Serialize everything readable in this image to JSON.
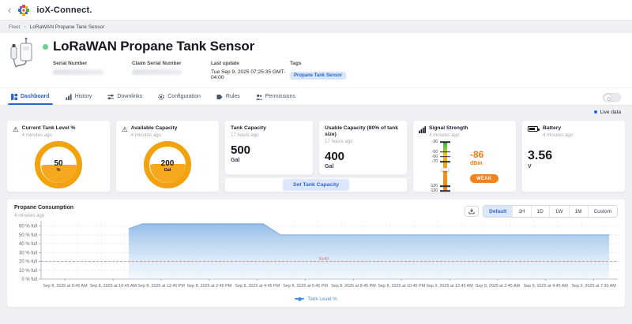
{
  "topbar": {
    "back": "‹",
    "brand": "ioX-Connect."
  },
  "breadcrumb": {
    "items": [
      "Fleet",
      "LoRaWAN Propane Tank Sensor"
    ],
    "separator": "›"
  },
  "header": {
    "status": "online",
    "title": "LoRaWAN Propane Tank Sensor",
    "fields": [
      {
        "label": "Serial Number",
        "redacted": true
      },
      {
        "label": "Claim Serial Number",
        "redacted": true
      },
      {
        "label": "Last update",
        "value": "Tue Sep 9, 2025 07:25:35 GMT-04:00"
      },
      {
        "label": "Tags",
        "badge": "Propane Tank Sensor"
      }
    ]
  },
  "tabs": [
    {
      "label": "Dashboard",
      "icon": "dashboard-icon",
      "active": true
    },
    {
      "label": "History",
      "icon": "history-icon",
      "active": false
    },
    {
      "label": "Downlinks",
      "icon": "downlinks-icon",
      "active": false
    },
    {
      "label": "Configuration",
      "icon": "configuration-icon",
      "active": false
    },
    {
      "label": "Rules",
      "icon": "rules-icon",
      "active": false
    },
    {
      "label": "Permissions",
      "icon": "permissions-icon",
      "active": false
    }
  ],
  "live_data": {
    "label": "Live data"
  },
  "cards": {
    "tank_level": {
      "title": "Current Tank Level %",
      "updated": "4 minutes ago",
      "value": "50",
      "unit": "%",
      "fill_pct": 50,
      "warning_icon": "⚠"
    },
    "available_capacity": {
      "title": "Available Capacity",
      "updated": "4 minutes ago",
      "value": "200",
      "unit": "Gal",
      "fill_pct": 52,
      "warning_icon": "⚠"
    },
    "tank_capacity": {
      "title": "Tank Capacity",
      "updated": "17 hours ago",
      "value": "500",
      "unit": "Gal"
    },
    "usable_capacity": {
      "title": "Usable Capacity (80% of tank size)",
      "updated": "17 hours ago",
      "value": "400",
      "unit": "Gal"
    },
    "set_capacity_button": "Set Tank Capacity",
    "signal": {
      "title": "Signal Strength",
      "updated": "4 minutes ago",
      "value": "-86",
      "unit": "dBm",
      "status": "WEAK",
      "marker_pos": 56,
      "ticks": [
        {
          "label": "-30",
          "pos": 0
        },
        {
          "label": "-50",
          "pos": 20
        },
        {
          "label": "-60",
          "pos": 30
        },
        {
          "label": "-70",
          "pos": 40
        },
        {
          "label": "-120",
          "pos": 90
        },
        {
          "label": "-130",
          "pos": 100
        }
      ]
    },
    "battery": {
      "title": "Battery",
      "updated": "4 minutes ago",
      "value": "3.56",
      "unit": "V"
    }
  },
  "chart": {
    "title": "Propane Consumption",
    "updated": "4 minutes ago",
    "range_buttons": [
      "Default",
      "1H",
      "1D",
      "1W",
      "1M",
      "Custom"
    ],
    "active_range": "Default"
  },
  "chart_data": {
    "type": "area",
    "title": "Propane Consumption",
    "ylabel": "% full",
    "ylim": [
      0,
      66
    ],
    "grid": true,
    "y_ticks": [
      {
        "value": 0,
        "label": "0 % full"
      },
      {
        "value": 10,
        "label": "10 % full"
      },
      {
        "value": 20,
        "label": "20 % full"
      },
      {
        "value": 30,
        "label": "30 % full"
      },
      {
        "value": 40,
        "label": "40 % full"
      },
      {
        "value": 50,
        "label": "50 % full"
      },
      {
        "value": 60,
        "label": "60 % full"
      }
    ],
    "x_ticks": [
      "Sep 8, 2025 at 8:45 AM",
      "Sep 8, 2025 at 10:45 AM",
      "Sep 8, 2025 at 12:45 PM",
      "Sep 8, 2025 at 2:45 PM",
      "Sep 8, 2025 at 4:45 PM",
      "Sep 8, 2025 at 6:45 PM",
      "Sep 8, 2025 at 8:45 PM",
      "Sep 8, 2025 at 10:45 PM",
      "Sep 9, 2025 at 12:45 AM",
      "Sep 9, 2025 at 2:45 AM",
      "Sep 9, 2025 at 4:45 AM",
      "Sep 9, 2025 at 7:30 AM"
    ],
    "threshold": {
      "value": 20,
      "label": "Refill",
      "color": "#D9706B"
    },
    "series": [
      {
        "name": "Tank Level %",
        "line_color": "#76A9E0",
        "fill_top": "#8FBAE8",
        "fill_bottom": "#E2EEFA",
        "points": [
          {
            "x_frac": 0.152,
            "time": "Sep 8, 2025 ~11:40 AM",
            "value": 57
          },
          {
            "x_frac": 0.176,
            "time": "Sep 8, 2025 ~12:10 PM",
            "value": 62.5
          },
          {
            "x_frac": 0.385,
            "time": "Sep 8, 2025 ~4:25 PM",
            "value": 62.5
          },
          {
            "x_frac": 0.415,
            "time": "Sep 8, 2025 ~4:55 PM",
            "value": 50
          },
          {
            "x_frac": 0.985,
            "time": "Sep 9, 2025 at 7:30 AM",
            "value": 50
          }
        ]
      }
    ],
    "legend": [
      {
        "label": "Tank Level %",
        "color": "#4A90D9"
      }
    ],
    "legend_position": "bottom-center"
  },
  "colors": {
    "accent_blue": "#2B66C9",
    "gauge_orange": "#F2A20C",
    "warn_orange": "#F58220",
    "badge_bg": "#D8E6FD",
    "page_bg": "#EEF0F4",
    "online_green": "#6FCF8F"
  }
}
